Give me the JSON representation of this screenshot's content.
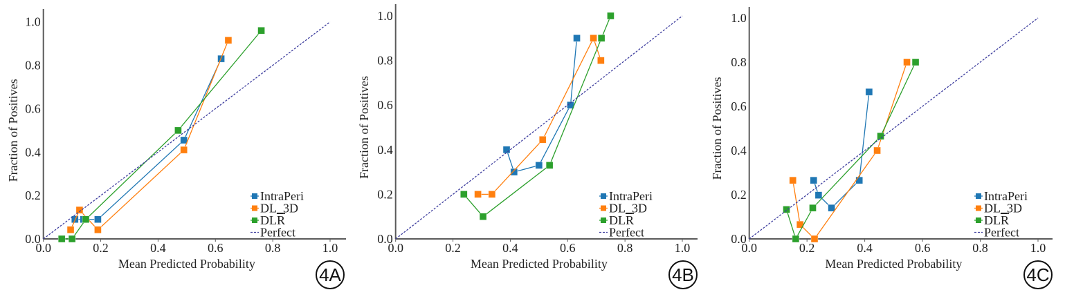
{
  "figure": {
    "colors": {
      "IntraPeri": "#1f77b4",
      "DL_3D": "#ff7f0e",
      "DLR": "#2ca02c",
      "Perfect": "#3d3d9e",
      "axis": "#5a5a5a"
    }
  },
  "chart_data": [
    {
      "type": "line",
      "panel_label": "4A",
      "title": "",
      "xlabel": "Mean Predicted Probability",
      "ylabel": "Fraction of Positives",
      "xlim": [
        0,
        1.05
      ],
      "ylim": [
        0,
        1.05
      ],
      "xticks": [
        "0.0",
        "0.2",
        "0.4",
        "0.6",
        "0.8",
        "1.0"
      ],
      "yticks": [
        "0.0",
        "0.2",
        "0.4",
        "0.6",
        "0.8",
        "1.0"
      ],
      "grid": false,
      "legend_position": "bottom-right",
      "legend": [
        "IntraPeri",
        "DL_3D",
        "DLR",
        "Perfect"
      ],
      "series": [
        {
          "name": "IntraPeri",
          "x": [
            0.11,
            0.14,
            0.19,
            0.49,
            0.62
          ],
          "y": [
            0.09,
            0.09,
            0.09,
            0.455,
            0.83
          ]
        },
        {
          "name": "DL_3D",
          "x": [
            0.095,
            0.126,
            0.19,
            0.49,
            0.645
          ],
          "y": [
            0.042,
            0.133,
            0.042,
            0.41,
            0.915
          ]
        },
        {
          "name": "DLR",
          "x": [
            0.064,
            0.1,
            0.148,
            0.47,
            0.76
          ],
          "y": [
            0.0,
            0.0,
            0.09,
            0.5,
            0.96
          ]
        },
        {
          "name": "Perfect",
          "x": [
            0,
            1
          ],
          "y": [
            0,
            1
          ],
          "style": "dashed"
        }
      ]
    },
    {
      "type": "line",
      "panel_label": "4B",
      "title": "",
      "xlabel": "Mean Predicted Probability",
      "ylabel": "Fraction of Positives",
      "xlim": [
        0,
        1.05
      ],
      "ylim": [
        0,
        1.05
      ],
      "xticks": [
        "0.0",
        "0.2",
        "0.4",
        "0.6",
        "0.8",
        "1.0"
      ],
      "yticks": [
        "0.0",
        "0.2",
        "0.4",
        "0.6",
        "0.8",
        "1.0"
      ],
      "grid": false,
      "legend_position": "bottom-right",
      "legend": [
        "IntraPeri",
        "DL_3D",
        "DLR",
        "Perfect"
      ],
      "series": [
        {
          "name": "IntraPeri",
          "x": [
            0.387,
            0.413,
            0.5,
            0.61,
            0.632
          ],
          "y": [
            0.4,
            0.3,
            0.33,
            0.6,
            0.9
          ]
        },
        {
          "name": "DL_3D",
          "x": [
            0.287,
            0.336,
            0.513,
            0.69,
            0.716
          ],
          "y": [
            0.2,
            0.2,
            0.445,
            0.9,
            0.8
          ]
        },
        {
          "name": "DLR",
          "x": [
            0.238,
            0.305,
            0.537,
            0.718,
            0.75
          ],
          "y": [
            0.2,
            0.1,
            0.33,
            0.9,
            1.0
          ]
        },
        {
          "name": "Perfect",
          "x": [
            0,
            1
          ],
          "y": [
            0,
            1
          ],
          "style": "dashed"
        }
      ]
    },
    {
      "type": "line",
      "panel_label": "4C",
      "title": "",
      "xlabel": "Mean Predicted Probability",
      "ylabel": "Fraction of Positives",
      "xlim": [
        0,
        1.05
      ],
      "ylim": [
        0,
        1.05
      ],
      "xticks": [
        "0.0",
        "0.2",
        "0.4",
        "0.6",
        "0.8",
        "1.0"
      ],
      "yticks": [
        "0.0",
        "0.2",
        "0.4",
        "0.6",
        "0.8",
        "1.0"
      ],
      "grid": false,
      "legend_position": "bottom-right",
      "legend": [
        "IntraPeri",
        "DL_3D",
        "DLR",
        "Perfect"
      ],
      "series": [
        {
          "name": "IntraPeri",
          "x": [
            0.223,
            0.24,
            0.285,
            0.381,
            0.415
          ],
          "y": [
            0.265,
            0.198,
            0.14,
            0.265,
            0.665
          ]
        },
        {
          "name": "DL_3D",
          "x": [
            0.151,
            0.176,
            0.226,
            0.443,
            0.546
          ],
          "y": [
            0.265,
            0.065,
            0.0,
            0.4,
            0.8
          ]
        },
        {
          "name": "DLR",
          "x": [
            0.129,
            0.161,
            0.22,
            0.455,
            0.576
          ],
          "y": [
            0.133,
            0.0,
            0.14,
            0.465,
            0.8
          ]
        },
        {
          "name": "Perfect",
          "x": [
            0,
            1
          ],
          "y": [
            0,
            1
          ],
          "style": "dashed"
        }
      ]
    }
  ]
}
